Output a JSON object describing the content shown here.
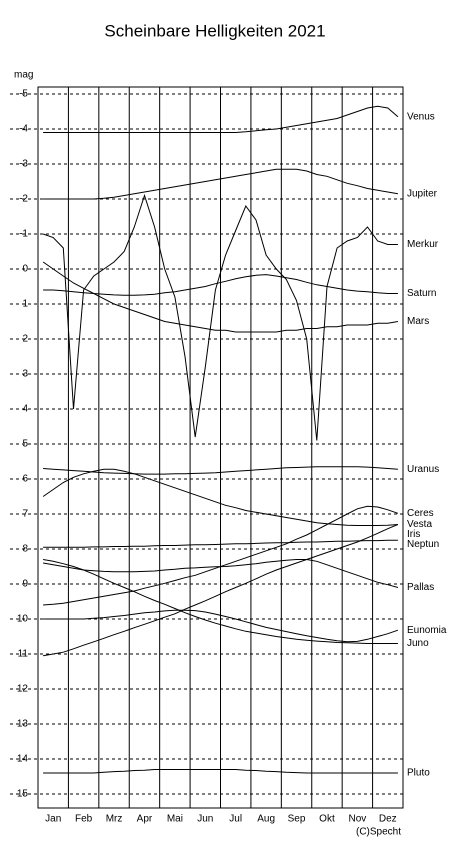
{
  "chart_data": {
    "type": "line",
    "title": "Scheinbare Helligkeiten 2021",
    "y_label": "mag",
    "footer": "(C)Specht",
    "y_inverted": true,
    "grid": true,
    "ylim": [
      -5.2,
      15.4
    ],
    "yticks": [
      -5,
      -4,
      -3,
      -2,
      -1,
      0,
      1,
      2,
      3,
      4,
      5,
      6,
      7,
      8,
      9,
      10,
      11,
      12,
      13,
      14,
      15
    ],
    "categories": [
      null,
      "Jan",
      null,
      null,
      "Feb",
      null,
      null,
      "Mrz",
      null,
      null,
      "Apr",
      null,
      null,
      "Mai",
      null,
      null,
      "Jun",
      null,
      null,
      "Jul",
      null,
      null,
      "Aug",
      null,
      null,
      "Sep",
      null,
      null,
      "Okt",
      null,
      null,
      "Nov",
      null,
      null,
      "Dez",
      null
    ],
    "series": [
      {
        "name": "Venus",
        "color": "#000000",
        "values": [
          -3.9,
          -3.9,
          -3.9,
          -3.9,
          -3.9,
          -3.9,
          -3.9,
          -3.9,
          -3.9,
          -3.9,
          -3.9,
          -3.9,
          -3.9,
          -3.9,
          -3.9,
          -3.9,
          -3.9,
          -3.9,
          -3.9,
          -3.9,
          -3.92,
          -3.95,
          -3.98,
          -4.0,
          -4.05,
          -4.1,
          -4.15,
          -4.2,
          -4.25,
          -4.3,
          -4.4,
          -4.5,
          -4.6,
          -4.65,
          -4.6,
          -4.35
        ]
      },
      {
        "name": "Jupiter",
        "color": "#000000",
        "values": [
          -2.0,
          -2.0,
          -2.0,
          -2.0,
          -2.0,
          -2.0,
          -2.02,
          -2.05,
          -2.1,
          -2.15,
          -2.2,
          -2.25,
          -2.3,
          -2.35,
          -2.4,
          -2.45,
          -2.5,
          -2.55,
          -2.6,
          -2.65,
          -2.7,
          -2.75,
          -2.8,
          -2.85,
          -2.85,
          -2.85,
          -2.8,
          -2.7,
          -2.65,
          -2.55,
          -2.45,
          -2.38,
          -2.3,
          -2.25,
          -2.2,
          -2.15
        ]
      },
      {
        "name": "Merkur",
        "color": "#000000",
        "values": [
          -1.0,
          -0.9,
          -0.6,
          4.0,
          0.6,
          0.2,
          0.0,
          -0.2,
          -0.5,
          -1.2,
          -2.1,
          -1.2,
          0.0,
          0.8,
          2.5,
          4.8,
          2.8,
          0.6,
          -0.4,
          -1.1,
          -1.8,
          -1.4,
          -0.4,
          0.0,
          0.3,
          0.9,
          2.0,
          4.9,
          0.5,
          -0.6,
          -0.8,
          -0.9,
          -1.2,
          -0.8,
          -0.7,
          -0.7
        ]
      },
      {
        "name": "Saturn",
        "color": "#000000",
        "values": [
          0.6,
          0.6,
          0.62,
          0.65,
          0.68,
          0.7,
          0.72,
          0.74,
          0.75,
          0.75,
          0.74,
          0.72,
          0.68,
          0.65,
          0.6,
          0.55,
          0.5,
          0.42,
          0.35,
          0.28,
          0.22,
          0.18,
          0.16,
          0.2,
          0.25,
          0.3,
          0.38,
          0.45,
          0.5,
          0.55,
          0.6,
          0.63,
          0.65,
          0.68,
          0.7,
          0.7
        ]
      },
      {
        "name": "Mars",
        "color": "#000000",
        "values": [
          -0.2,
          0.0,
          0.2,
          0.4,
          0.55,
          0.7,
          0.85,
          1.0,
          1.1,
          1.2,
          1.3,
          1.4,
          1.5,
          1.55,
          1.6,
          1.65,
          1.7,
          1.75,
          1.75,
          1.8,
          1.8,
          1.8,
          1.8,
          1.8,
          1.75,
          1.75,
          1.7,
          1.7,
          1.65,
          1.65,
          1.6,
          1.6,
          1.6,
          1.55,
          1.55,
          1.5
        ]
      },
      {
        "name": "Uranus",
        "color": "#000000",
        "values": [
          5.7,
          5.72,
          5.74,
          5.76,
          5.78,
          5.8,
          5.82,
          5.83,
          5.84,
          5.85,
          5.86,
          5.86,
          5.86,
          5.85,
          5.85,
          5.84,
          5.83,
          5.82,
          5.8,
          5.78,
          5.76,
          5.74,
          5.72,
          5.7,
          5.68,
          5.67,
          5.66,
          5.65,
          5.65,
          5.65,
          5.65,
          5.65,
          5.66,
          5.68,
          5.7,
          5.72
        ]
      },
      {
        "name": "Ceres",
        "color": "#000000",
        "values": [
          9.6,
          9.58,
          9.55,
          9.5,
          9.45,
          9.4,
          9.35,
          9.3,
          9.25,
          9.2,
          9.12,
          9.05,
          8.98,
          8.9,
          8.82,
          8.75,
          8.65,
          8.55,
          8.45,
          8.35,
          8.25,
          8.15,
          8.05,
          7.95,
          7.85,
          7.72,
          7.6,
          7.45,
          7.3,
          7.15,
          7.0,
          6.85,
          6.78,
          6.8,
          6.88,
          6.98
        ]
      },
      {
        "name": "Vesta",
        "color": "#000000",
        "values": [
          6.5,
          6.3,
          6.1,
          5.95,
          5.85,
          5.78,
          5.72,
          5.72,
          5.78,
          5.85,
          5.95,
          6.05,
          6.15,
          6.25,
          6.35,
          6.45,
          6.55,
          6.65,
          6.75,
          6.82,
          6.9,
          6.95,
          7.0,
          7.05,
          7.1,
          7.15,
          7.2,
          7.25,
          7.28,
          7.3,
          7.32,
          7.33,
          7.33,
          7.33,
          7.32,
          7.3
        ]
      },
      {
        "name": "Iris",
        "color": "#000000",
        "values": [
          11.05,
          11.0,
          10.95,
          10.85,
          10.75,
          10.65,
          10.55,
          10.45,
          10.35,
          10.25,
          10.15,
          10.05,
          9.95,
          9.85,
          9.72,
          9.6,
          9.48,
          9.35,
          9.22,
          9.1,
          8.98,
          8.85,
          8.72,
          8.6,
          8.5,
          8.4,
          8.3,
          8.2,
          8.1,
          8.0,
          7.9,
          7.8,
          7.68,
          7.55,
          7.42,
          7.3
        ]
      },
      {
        "name": "Neptun",
        "color": "#000000",
        "values": [
          7.95,
          7.95,
          7.95,
          7.95,
          7.95,
          7.94,
          7.94,
          7.93,
          7.93,
          7.92,
          7.92,
          7.91,
          7.9,
          7.9,
          7.89,
          7.88,
          7.88,
          7.87,
          7.86,
          7.85,
          7.85,
          7.84,
          7.83,
          7.82,
          7.82,
          7.81,
          7.8,
          7.8,
          7.79,
          7.78,
          7.78,
          7.77,
          7.76,
          7.76,
          7.75,
          7.75
        ]
      },
      {
        "name": "Pallas",
        "color": "#000000",
        "values": [
          8.4,
          8.45,
          8.5,
          8.55,
          8.6,
          8.62,
          8.64,
          8.65,
          8.65,
          8.65,
          8.64,
          8.63,
          8.6,
          8.58,
          8.55,
          8.54,
          8.52,
          8.51,
          8.5,
          8.48,
          8.45,
          8.42,
          8.38,
          8.35,
          8.32,
          8.3,
          8.3,
          8.35,
          8.45,
          8.55,
          8.65,
          8.75,
          8.85,
          8.95,
          9.02,
          9.1
        ]
      },
      {
        "name": "Eunomia",
        "color": "#000000",
        "values": [
          10.0,
          10.0,
          10.0,
          10.0,
          10.0,
          9.98,
          9.96,
          9.93,
          9.9,
          9.86,
          9.82,
          9.8,
          9.77,
          9.75,
          9.75,
          9.76,
          9.8,
          9.86,
          9.93,
          10.0,
          10.08,
          10.16,
          10.24,
          10.3,
          10.36,
          10.42,
          10.48,
          10.53,
          10.58,
          10.62,
          10.65,
          10.64,
          10.58,
          10.5,
          10.42,
          10.32
        ]
      },
      {
        "name": "Juno",
        "color": "#000000",
        "values": [
          8.3,
          8.35,
          8.42,
          8.5,
          8.6,
          8.72,
          8.85,
          8.98,
          9.1,
          9.22,
          9.35,
          9.47,
          9.58,
          9.7,
          9.82,
          9.93,
          10.03,
          10.12,
          10.2,
          10.28,
          10.35,
          10.4,
          10.45,
          10.5,
          10.54,
          10.58,
          10.61,
          10.63,
          10.65,
          10.67,
          10.68,
          10.69,
          10.7,
          10.7,
          10.7,
          10.7
        ]
      },
      {
        "name": "Pluto",
        "color": "#000000",
        "values": [
          14.4,
          14.4,
          14.4,
          14.4,
          14.4,
          14.4,
          14.38,
          14.36,
          14.35,
          14.33,
          14.32,
          14.3,
          14.3,
          14.3,
          14.3,
          14.3,
          14.3,
          14.3,
          14.3,
          14.3,
          14.32,
          14.33,
          14.35,
          14.36,
          14.38,
          14.39,
          14.4,
          14.4,
          14.4,
          14.4,
          14.4,
          14.4,
          14.4,
          14.4,
          14.4,
          14.4
        ]
      }
    ]
  }
}
